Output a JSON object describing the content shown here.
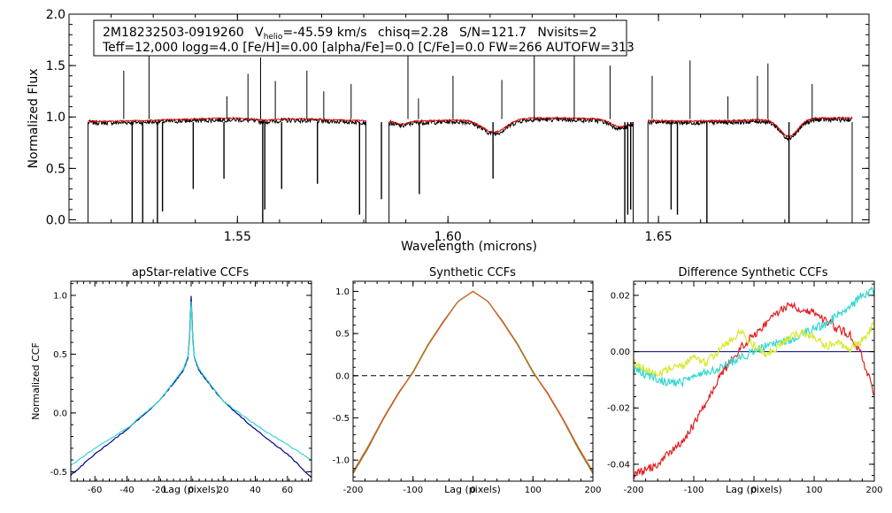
{
  "chart_data": [
    {
      "type": "line",
      "name": "spectrum",
      "info_line1": {
        "id": "2M18232503-0919260",
        "v_prefix": "V",
        "v_sub": "helio",
        "v_value": "=-45.59 km/s",
        "chisq": "chisq=2.28",
        "sn": "S/N=121.7",
        "nvisits": "Nvisits=2"
      },
      "info_line2": "Teff=12,000 logg=4.0 [Fe/H]=0.00 [alpha/Fe]=0.0 [C/Fe]=0.0 FW=266 AUTOFW=313",
      "xlabel": "Wavelength (microns)",
      "ylabel": "Normalized Flux",
      "xlim": [
        1.51,
        1.7
      ],
      "ylim": [
        -0.03,
        2.0
      ],
      "xticks": [
        1.55,
        1.6,
        1.65
      ],
      "xtick_labels": [
        "1.55",
        "1.60",
        "1.65"
      ],
      "yticks": [
        0.0,
        0.5,
        1.0,
        1.5,
        2.0
      ],
      "ytick_labels": [
        "0.0",
        "0.5",
        "1.0",
        "1.5",
        "2.0"
      ],
      "chip_ranges": [
        [
          1.5145,
          1.5805
        ],
        [
          1.586,
          1.644
        ],
        [
          1.6475,
          1.696
        ]
      ],
      "dips": [
        {
          "center": 1.5565,
          "depth": 0.02,
          "width": 0.004
        },
        {
          "center": 1.589,
          "depth": 0.03,
          "width": 0.002
        },
        {
          "center": 1.611,
          "depth": 0.13,
          "width": 0.004
        },
        {
          "center": 1.641,
          "depth": 0.07,
          "width": 0.003
        },
        {
          "center": 1.681,
          "depth": 0.17,
          "width": 0.003
        }
      ],
      "spikes_up": [
        1.523,
        1.529,
        1.5475,
        1.5525,
        1.5555,
        1.559,
        1.5665,
        1.5705,
        1.577,
        1.5905,
        1.593,
        1.6012,
        1.6128,
        1.6205,
        1.63,
        1.6385,
        1.6485,
        1.6575,
        1.6665,
        1.6735,
        1.676,
        1.6865
      ],
      "spikes_up_height": [
        1.45,
        1.62,
        1.2,
        1.42,
        1.58,
        1.35,
        1.45,
        1.25,
        1.32,
        1.6,
        1.18,
        1.4,
        1.36,
        1.62,
        1.62,
        1.5,
        1.4,
        1.55,
        1.2,
        1.4,
        1.52,
        1.32
      ],
      "spikes_down": [
        1.525,
        1.5275,
        1.531,
        1.5322,
        1.5395,
        1.5468,
        1.556,
        1.5565,
        1.5605,
        1.569,
        1.579,
        1.5842,
        1.5932,
        1.6107,
        1.642,
        1.6427,
        1.6434,
        1.653,
        1.6545,
        1.6615,
        1.681
      ],
      "spikes_down_depth": [
        -0.03,
        -0.03,
        -0.03,
        0.08,
        0.3,
        0.4,
        -0.03,
        0.1,
        0.3,
        0.35,
        0.05,
        0.2,
        0.25,
        0.4,
        -0.03,
        0.05,
        0.1,
        0.1,
        0.05,
        -0.03,
        -0.03
      ],
      "series": [
        {
          "name": "observed",
          "color": "#000000",
          "continuum": 0.96,
          "noise": 0.022
        },
        {
          "name": "model",
          "color": "#e00000",
          "continuum": 0.975,
          "noise": 0.006
        }
      ]
    },
    {
      "type": "line",
      "name": "apstar-ccf",
      "title": "apStar-relative CCFs",
      "xlabel": "Lag (pixels)",
      "ylabel": "Normalized CCF",
      "xlim": [
        -75,
        75
      ],
      "ylim": [
        -0.58,
        1.12
      ],
      "xticks": [
        -60,
        -40,
        -20,
        0,
        20,
        40,
        60
      ],
      "xtick_labels": [
        "-60",
        "-40",
        "-20",
        "0",
        "20",
        "40",
        "60"
      ],
      "yticks": [
        -0.5,
        0.0,
        0.5,
        1.0
      ],
      "ytick_labels": [
        "-0.5",
        "0.0",
        "0.5",
        "1.0"
      ],
      "x": [
        -75,
        -60,
        -40,
        -20,
        -10,
        -5,
        -2,
        -1,
        0,
        1,
        2,
        5,
        10,
        20,
        40,
        60,
        75
      ],
      "series": [
        {
          "name": "visit-1",
          "color": "#00008b",
          "values": [
            -0.53,
            -0.35,
            -0.14,
            0.1,
            0.27,
            0.36,
            0.47,
            0.64,
            1.0,
            0.64,
            0.47,
            0.36,
            0.27,
            0.1,
            -0.14,
            -0.35,
            -0.55
          ]
        },
        {
          "name": "visit-2",
          "color": "#30d8d0",
          "values": [
            -0.45,
            -0.3,
            -0.13,
            0.1,
            0.28,
            0.37,
            0.48,
            0.62,
            0.95,
            0.62,
            0.48,
            0.37,
            0.28,
            0.1,
            -0.1,
            -0.27,
            -0.4
          ]
        }
      ]
    },
    {
      "type": "line",
      "name": "synthetic-ccf",
      "title": "Synthetic CCFs",
      "xlabel": "Lag (pixels)",
      "ylabel": "",
      "xlim": [
        -200,
        200
      ],
      "ylim": [
        -1.25,
        1.12
      ],
      "xticks": [
        -200,
        -100,
        0,
        100,
        200
      ],
      "xtick_labels": [
        "-200",
        "-100",
        "0",
        "100",
        "200"
      ],
      "yticks": [
        -1.0,
        -0.5,
        0.0,
        0.5,
        1.0
      ],
      "ytick_labels": [
        "-1.0",
        "-0.5",
        "0.0",
        "0.5",
        "1.0"
      ],
      "x": [
        -200,
        -175,
        -150,
        -125,
        -100,
        -75,
        -50,
        -25,
        0,
        25,
        50,
        75,
        100,
        125,
        150,
        175,
        200
      ],
      "series": [
        {
          "name": "synthetic",
          "color": "#20a020",
          "values": [
            -1.16,
            -0.86,
            -0.52,
            -0.22,
            0.05,
            0.37,
            0.64,
            0.88,
            1.0,
            0.88,
            0.64,
            0.37,
            0.05,
            -0.22,
            -0.52,
            -0.86,
            -1.16
          ]
        },
        {
          "name": "synthetic-2",
          "color": "#e02020",
          "values": [
            -1.14,
            -0.84,
            -0.51,
            -0.21,
            0.04,
            0.36,
            0.63,
            0.88,
            1.0,
            0.88,
            0.63,
            0.36,
            0.04,
            -0.21,
            -0.51,
            -0.84,
            -1.14
          ]
        },
        {
          "name": "synthetic-3",
          "color": "#c87020",
          "values": [
            -1.15,
            -0.85,
            -0.52,
            -0.22,
            0.04,
            0.36,
            0.64,
            0.88,
            1.0,
            0.88,
            0.64,
            0.36,
            0.04,
            -0.22,
            -0.52,
            -0.85,
            -1.15
          ]
        }
      ],
      "hline": {
        "y": 0.0,
        "style": "dashed",
        "color": "#000000"
      }
    },
    {
      "type": "line",
      "name": "difference-ccf",
      "title": "Difference Synthetic CCFs",
      "xlabel": "Lag (pixels)",
      "ylabel": "",
      "xlim": [
        -200,
        200
      ],
      "ylim": [
        -0.046,
        0.025
      ],
      "xticks": [
        -200,
        -100,
        0,
        100,
        200
      ],
      "xtick_labels": [
        "-200",
        "-100",
        "0",
        "100",
        "200"
      ],
      "yticks": [
        -0.04,
        -0.02,
        0.0,
        0.02
      ],
      "ytick_labels": [
        "-0.04",
        "-0.02",
        "0.00",
        "0.02"
      ],
      "x": [
        -200,
        -180,
        -160,
        -140,
        -120,
        -100,
        -80,
        -60,
        -40,
        -20,
        0,
        20,
        40,
        60,
        80,
        100,
        120,
        140,
        160,
        180,
        200
      ],
      "series": [
        {
          "name": "red",
          "color": "#e02020",
          "values": [
            -0.044,
            -0.042,
            -0.04,
            -0.036,
            -0.032,
            -0.026,
            -0.018,
            -0.01,
            -0.004,
            0.002,
            0.006,
            0.01,
            0.014,
            0.017,
            0.015,
            0.014,
            0.011,
            0.008,
            0.006,
            -0.002,
            -0.015
          ]
        },
        {
          "name": "cyan",
          "color": "#30d8d0",
          "values": [
            -0.006,
            -0.008,
            -0.01,
            -0.011,
            -0.011,
            -0.009,
            -0.007,
            -0.006,
            -0.004,
            -0.002,
            0.0,
            0.002,
            0.003,
            0.004,
            0.006,
            0.008,
            0.01,
            0.013,
            0.016,
            0.02,
            0.022
          ]
        },
        {
          "name": "yellow",
          "color": "#d8e830",
          "values": [
            -0.004,
            -0.006,
            -0.008,
            -0.006,
            -0.005,
            -0.002,
            -0.004,
            0.0,
            0.004,
            0.007,
            0.002,
            -0.001,
            0.002,
            0.005,
            0.007,
            0.005,
            0.002,
            0.003,
            0.001,
            0.004,
            0.01
          ]
        }
      ],
      "hline": {
        "y": 0.0,
        "style": "solid",
        "color": "#00008b"
      }
    }
  ]
}
